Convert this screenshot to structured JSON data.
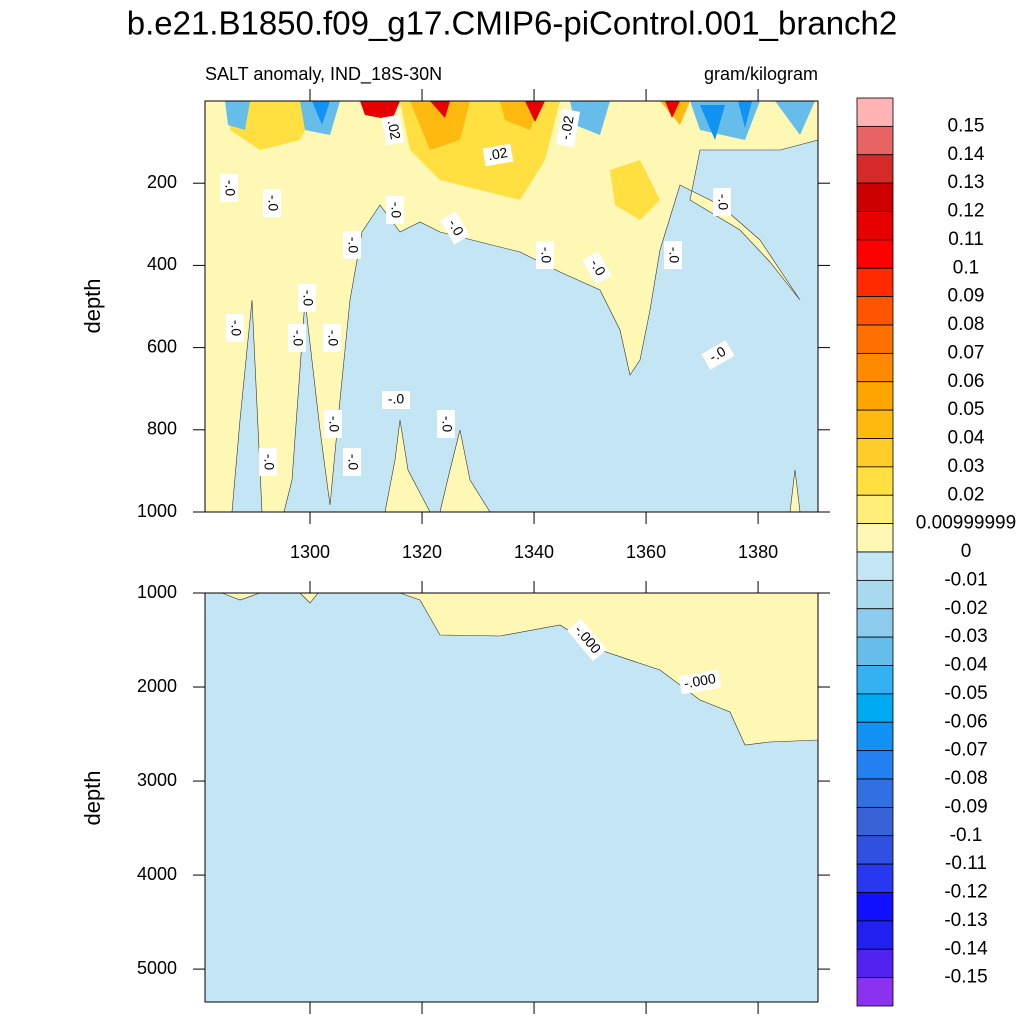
{
  "chart_data": [
    {
      "type": "contour",
      "title": "b.e21.B1850.f09_g17.CMIP6-piControl.001_branch2",
      "subtitle_left": "SALT anomaly, IND_18S-30N",
      "subtitle_right": "gram/kilogram",
      "y_label": "depth",
      "xlim": [
        1281.25,
        1390.7
      ],
      "xticks": [
        1300,
        1320,
        1340,
        1360,
        1380
      ],
      "ylim": [
        0,
        1000
      ],
      "yticks": [
        200,
        400,
        600,
        800,
        1000
      ],
      "y_reversed": true,
      "contour_labels": [
        "-.0",
        "-.0",
        ".02",
        ".02",
        "-.02",
        "-.0",
        "-.0",
        "-.0",
        "-.0",
        "-.0",
        "-.0",
        "-.0",
        "-.0",
        "-.0",
        "-.0",
        "-.0",
        "-.0",
        "-.0",
        "-.0",
        "-.0",
        "-.0",
        "-.0"
      ],
      "levels": [
        0.15,
        0.14,
        0.13,
        0.12,
        0.11,
        0.1,
        0.09,
        0.08,
        0.07,
        0.06,
        0.05,
        0.04,
        0.03,
        0.02,
        0.00999999,
        0,
        -0.01,
        -0.02,
        -0.03,
        -0.04,
        -0.05,
        -0.06,
        -0.07,
        -0.08,
        -0.09,
        -0.1,
        -0.11,
        -0.12,
        -0.13,
        -0.14,
        -0.15
      ],
      "colors": [
        "#ffb3b3",
        "#e86464",
        "#d42a2a",
        "#cc0000",
        "#e60000",
        "#ff0000",
        "#ff2a00",
        "#ff5500",
        "#ff7000",
        "#ff8a00",
        "#ffa500",
        "#ffb90f",
        "#ffcc2a",
        "#ffe040",
        "#ffee78",
        "#fff8b4",
        "#c4e6f4",
        "#a9d9ef",
        "#8ccbec",
        "#66bdea",
        "#33b1f0",
        "#00aaf0",
        "#1292f2",
        "#2280f0",
        "#3070e2",
        "#3a62d8",
        "#3050e2",
        "#2838f0",
        "#1010ff",
        "#2020f0",
        "#5222f0",
        "#8a32f0"
      ]
    },
    {
      "type": "contour",
      "y_label": "depth",
      "xlim": [
        1281.25,
        1390.7
      ],
      "xticks": [
        1300,
        1320,
        1340,
        1360,
        1380
      ],
      "xtick_labels": false,
      "ylim": [
        1000,
        5350
      ],
      "yticks": [
        1000,
        2000,
        3000,
        4000,
        5000
      ],
      "y_reversed": true,
      "contour_labels": [
        "-.000",
        "-.000"
      ]
    }
  ]
}
